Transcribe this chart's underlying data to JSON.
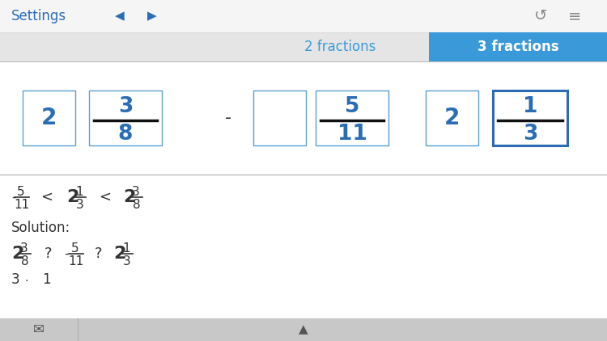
{
  "bg_color": "#f2f2f2",
  "white": "#ffffff",
  "blue": "#2a6db5",
  "tab_bg": "#3a9ad9",
  "tab_inactive_text": "#3a9ad9",
  "text_dark": "#333333",
  "border_blue": "#5a9fd4",
  "border_blue_active": "#2a6db5",
  "top_bar_bg": "#f5f5f5",
  "settings_text": "Settings",
  "tab1": "2 fractions",
  "tab2": "3 fractions",
  "toolbar_bg": "#c8c8c8",
  "divider_color": "#cccccc"
}
